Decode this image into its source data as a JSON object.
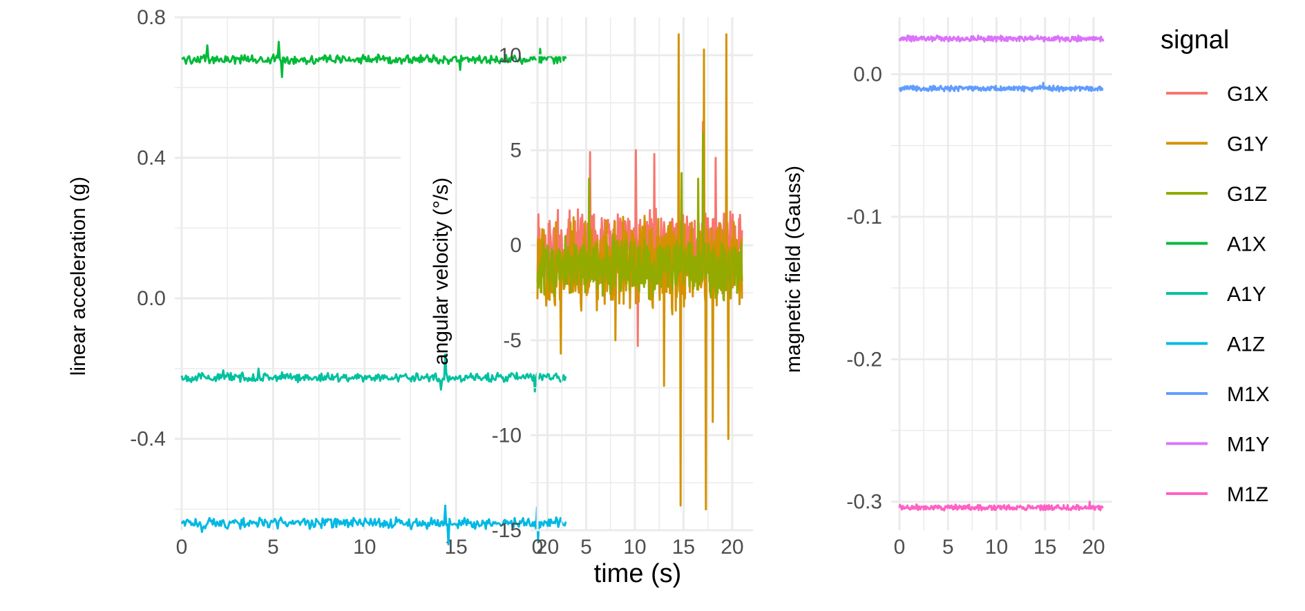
{
  "chart_data": {
    "type": "line",
    "xlabel": "time (s)",
    "legend": {
      "title": "signal",
      "placement": "right",
      "entries": [
        {
          "name": "G1X",
          "color": "#F8766D"
        },
        {
          "name": "G1Y",
          "color": "#D39200"
        },
        {
          "name": "G1Z",
          "color": "#93AA00"
        },
        {
          "name": "A1X",
          "color": "#00BA38"
        },
        {
          "name": "A1Y",
          "color": "#00C19F"
        },
        {
          "name": "A1Z",
          "color": "#00B9E3"
        },
        {
          "name": "M1X",
          "color": "#619CFF"
        },
        {
          "name": "M1Y",
          "color": "#DB72FB"
        },
        {
          "name": "M1Z",
          "color": "#FF61C3"
        }
      ]
    },
    "panels": [
      {
        "ylabel": "linear acceleration (g)",
        "xlim": [
          0,
          21
        ],
        "ylim": [
          -0.66,
          0.8
        ],
        "xticks": [
          "0",
          "5",
          "10",
          "15",
          "20"
        ],
        "yticks": [
          {
            "value": 0.8,
            "label": "0.8"
          },
          {
            "value": 0.4,
            "label": "0.4"
          },
          {
            "value": 0.0,
            "label": "0.0"
          },
          {
            "value": -0.4,
            "label": "-0.4"
          }
        ],
        "series": [
          {
            "name": "A1X",
            "baseline": 0.68,
            "noise": 0.01,
            "spikes": [
              [
                1.4,
                0.72
              ],
              [
                5.3,
                0.73
              ],
              [
                5.5,
                0.63
              ],
              [
                15.2,
                0.65
              ],
              [
                19.6,
                0.71
              ]
            ]
          },
          {
            "name": "A1Y",
            "baseline": -0.225,
            "noise": 0.01,
            "spikes": [
              [
                2.3,
                -0.205
              ],
              [
                4.2,
                -0.2
              ],
              [
                14.4,
                -0.16
              ],
              [
                14.2,
                -0.26
              ],
              [
                19.3,
                -0.265
              ]
            ]
          },
          {
            "name": "A1Z",
            "baseline": -0.64,
            "noise": 0.012,
            "spikes": [
              [
                1.1,
                -0.665
              ],
              [
                14.4,
                -0.59
              ],
              [
                14.6,
                -0.7
              ],
              [
                19.4,
                -0.595
              ],
              [
                19.5,
                -0.69
              ]
            ]
          }
        ]
      },
      {
        "ylabel": "angular velocity (°/s)",
        "xlim": [
          0,
          21
        ],
        "ylim": [
          -15,
          12
        ],
        "xticks": [
          "0",
          "5",
          "10",
          "15",
          "20"
        ],
        "yticks": [
          {
            "value": 10,
            "label": "10"
          },
          {
            "value": 5,
            "label": "5"
          },
          {
            "value": 0,
            "label": "0"
          },
          {
            "value": -5,
            "label": "-5"
          },
          {
            "value": -10,
            "label": "-10"
          },
          {
            "value": -15,
            "label": "-15"
          }
        ],
        "series": [
          {
            "name": "G1X",
            "baseline": 0.0,
            "noise": 1.4,
            "spikes": [
              [
                5.4,
                4.9
              ],
              [
                10.1,
                5.0
              ],
              [
                12.0,
                4.8
              ],
              [
                17.0,
                6.5
              ],
              [
                18.3,
                4.6
              ],
              [
                10.3,
                -5.3
              ]
            ]
          },
          {
            "name": "G1Y",
            "baseline": -1.0,
            "noise": 1.8,
            "spikes": [
              [
                14.5,
                11.1
              ],
              [
                14.7,
                -13.7
              ],
              [
                17.1,
                10.3
              ],
              [
                17.3,
                -13.9
              ],
              [
                19.4,
                11.1
              ],
              [
                19.6,
                -10.2
              ],
              [
                18.0,
                -9.3
              ],
              [
                13.0,
                -7.4
              ],
              [
                2.4,
                -5.7
              ],
              [
                8.0,
                -5.0
              ]
            ]
          },
          {
            "name": "G1Z",
            "baseline": -1.2,
            "noise": 1.2,
            "spikes": [
              [
                17.0,
                5.9
              ],
              [
                16.5,
                3.5
              ],
              [
                5.3,
                3.5
              ],
              [
                14.8,
                3.8
              ]
            ]
          }
        ]
      },
      {
        "ylabel": "magnetic field (Gauss)",
        "xlim": [
          0,
          21
        ],
        "ylim": [
          -0.32,
          0.04
        ],
        "xticks": [
          "0",
          "5",
          "10",
          "15",
          "20"
        ],
        "yticks": [
          {
            "value": 0.0,
            "label": "0.0"
          },
          {
            "value": -0.1,
            "label": "-0.1"
          },
          {
            "value": -0.2,
            "label": "-0.2"
          },
          {
            "value": -0.3,
            "label": "-0.3"
          }
        ],
        "series": [
          {
            "name": "M1Y",
            "baseline": 0.025,
            "noise": 0.0015,
            "spikes": []
          },
          {
            "name": "M1X",
            "baseline": -0.01,
            "noise": 0.0015,
            "spikes": [
              [
                14.8,
                -0.006
              ]
            ]
          },
          {
            "name": "M1Z",
            "baseline": -0.304,
            "noise": 0.0015,
            "spikes": [
              [
                19.6,
                -0.3
              ]
            ]
          }
        ]
      }
    ]
  }
}
